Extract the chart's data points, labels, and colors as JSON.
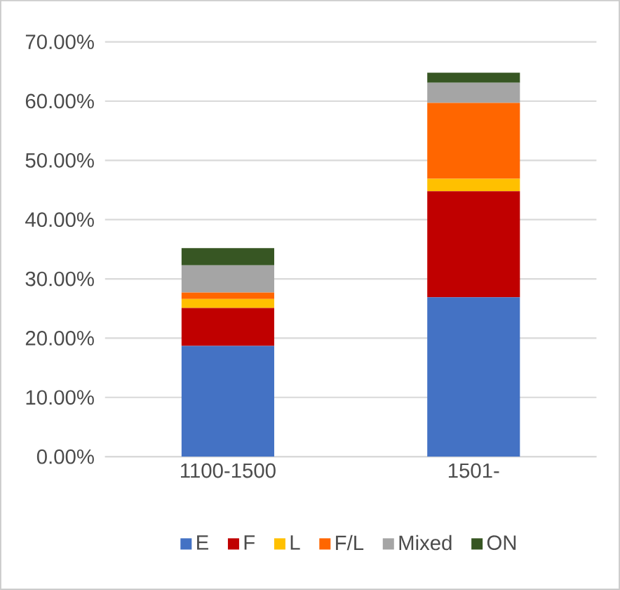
{
  "chart_data": {
    "type": "bar",
    "stacked": true,
    "categories": [
      "1100-1500",
      "1501-"
    ],
    "series": [
      {
        "name": "E",
        "color": "#4472c4",
        "values": [
          18.7,
          26.9
        ]
      },
      {
        "name": "F",
        "color": "#c00000",
        "values": [
          6.4,
          17.9
        ]
      },
      {
        "name": "L",
        "color": "#ffc000",
        "values": [
          1.5,
          2.1
        ]
      },
      {
        "name": "F/L",
        "color": "#ff6600",
        "values": [
          1.1,
          12.8
        ]
      },
      {
        "name": "Mixed",
        "color": "#a5a5a5",
        "values": [
          4.6,
          3.4
        ]
      },
      {
        "name": "ON",
        "color": "#375623",
        "values": [
          2.9,
          1.7
        ]
      }
    ],
    "ylim": [
      0,
      70
    ],
    "yticks": [
      {
        "value": 0,
        "label": "0.00%"
      },
      {
        "value": 10,
        "label": "10.00%"
      },
      {
        "value": 20,
        "label": "20.00%"
      },
      {
        "value": 30,
        "label": "30.00%"
      },
      {
        "value": 40,
        "label": "40.00%"
      },
      {
        "value": 50,
        "label": "50.00%"
      },
      {
        "value": 60,
        "label": "60.00%"
      },
      {
        "value": 70,
        "label": "70.00%"
      }
    ],
    "grid": "y",
    "legend": "bottom"
  }
}
